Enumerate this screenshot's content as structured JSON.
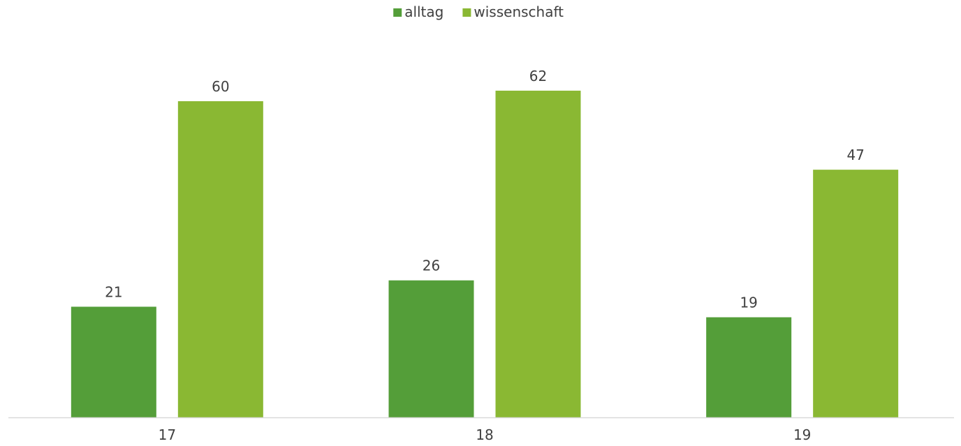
{
  "chart_data": {
    "type": "bar",
    "categories": [
      "17",
      "18",
      "19"
    ],
    "series": [
      {
        "name": "alltag",
        "values": [
          21,
          26,
          19
        ],
        "color": "#549E39"
      },
      {
        "name": "wissenschaft",
        "values": [
          60,
          62,
          47
        ],
        "color": "#8AB833"
      }
    ],
    "title": "",
    "xlabel": "",
    "ylabel": "",
    "ylim": [
      0,
      70
    ],
    "grid": false,
    "legend_position": "top-center",
    "data_labels": true,
    "axis_color": "#D9D9D9"
  }
}
